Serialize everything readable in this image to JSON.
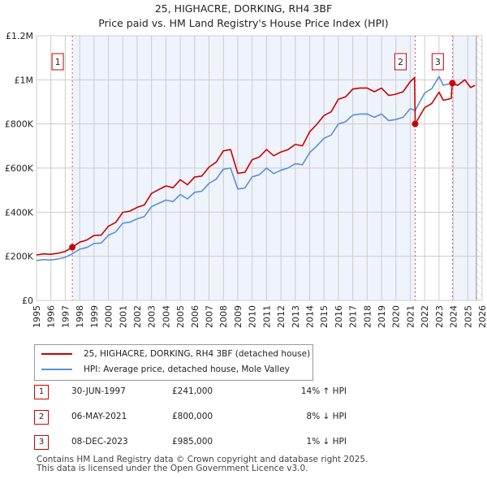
{
  "chart_data": {
    "type": "line",
    "title": "25, HIGHACRE, DORKING, RH4 3BF",
    "subtitle": "Price paid vs. HM Land Registry's House Price Index (HPI)",
    "xlim": [
      1995,
      2026
    ],
    "ylim": [
      0,
      1200000
    ],
    "x_ticks": [
      "1995",
      "1996",
      "1997",
      "1998",
      "1999",
      "2000",
      "2001",
      "2002",
      "2003",
      "2004",
      "2005",
      "2006",
      "2007",
      "2008",
      "2009",
      "2010",
      "2011",
      "2012",
      "2013",
      "2014",
      "2015",
      "2016",
      "2017",
      "2018",
      "2019",
      "2020",
      "2021",
      "2022",
      "2023",
      "2024",
      "2025",
      "2026"
    ],
    "y_ticks": [
      {
        "v": 0,
        "label": "£0"
      },
      {
        "v": 200000,
        "label": "£200K"
      },
      {
        "v": 400000,
        "label": "£400K"
      },
      {
        "v": 600000,
        "label": "£600K"
      },
      {
        "v": 800000,
        "label": "£800K"
      },
      {
        "v": 1000000,
        "label": "£1M"
      },
      {
        "v": 1200000,
        "label": "£1.2M"
      }
    ],
    "grid": true,
    "colors": {
      "property": "#cc0000",
      "hpi": "#5b8fd6",
      "shade": "#eef3fc"
    },
    "series": [
      {
        "name": "25, HIGHACRE, DORKING, RH4 3BF (detached house)",
        "color": "#cc0000",
        "x": [
          1995,
          1995.5,
          1996,
          1996.5,
          1997,
          1997.5,
          1998,
          1998.5,
          1999,
          1999.5,
          2000,
          2000.5,
          2001,
          2001.5,
          2002,
          2002.5,
          2003,
          2003.5,
          2004,
          2004.5,
          2005,
          2005.5,
          2006,
          2006.5,
          2007,
          2007.5,
          2008,
          2008.5,
          2009,
          2009.5,
          2010,
          2010.5,
          2011,
          2011.5,
          2012,
          2012.5,
          2013,
          2013.5,
          2014,
          2014.5,
          2015,
          2015.5,
          2016,
          2016.5,
          2017,
          2017.5,
          2018,
          2018.5,
          2019,
          2019.5,
          2020,
          2020.5,
          2021,
          2021.3,
          2021.35,
          2021.5,
          2022,
          2022.5,
          2023,
          2023.3,
          2023.85,
          2023.92,
          2024.3,
          2024.8,
          2025.2,
          2025.5
        ],
        "y": [
          206,
          211,
          209,
          214,
          222,
          241,
          264,
          274,
          294,
          296,
          336,
          353,
          399,
          405,
          422,
          433,
          485,
          502,
          519,
          511,
          547,
          524,
          559,
          564,
          604,
          627,
          678,
          684,
          576,
          581,
          638,
          650,
          684,
          656,
          673,
          684,
          707,
          701,
          764,
          798,
          838,
          855,
          912,
          923,
          958,
          963,
          963,
          946,
          963,
          929,
          935,
          946,
          992,
          1010,
          800,
          818,
          874,
          893,
          944,
          907,
          916,
          985,
          975,
          1000,
          965,
          975
        ]
      },
      {
        "name": "HPI: Average price, detached house, Mole Valley",
        "color": "#5b8fd6",
        "x": [
          1995,
          1995.5,
          1996,
          1996.5,
          1997,
          1997.5,
          1998,
          1998.5,
          1999,
          1999.5,
          2000,
          2000.5,
          2001,
          2001.5,
          2002,
          2002.5,
          2003,
          2003.5,
          2004,
          2004.5,
          2005,
          2005.5,
          2006,
          2006.5,
          2007,
          2007.5,
          2008,
          2008.5,
          2009,
          2009.5,
          2010,
          2010.5,
          2011,
          2011.5,
          2012,
          2012.5,
          2013,
          2013.5,
          2014,
          2014.5,
          2015,
          2015.5,
          2016,
          2016.5,
          2017,
          2017.5,
          2018,
          2018.5,
          2019,
          2019.5,
          2020,
          2020.5,
          2021,
          2021.35,
          2021.5,
          2022,
          2022.5,
          2023,
          2023.3,
          2023.9,
          2024.3,
          2024.8,
          2025.2,
          2025.5
        ],
        "y": [
          181,
          185,
          183,
          188,
          195,
          212,
          232,
          240,
          258,
          260,
          295,
          310,
          350,
          355,
          370,
          380,
          425,
          440,
          455,
          448,
          480,
          460,
          490,
          495,
          530,
          550,
          595,
          600,
          505,
          510,
          560,
          570,
          600,
          575,
          590,
          600,
          620,
          615,
          670,
          700,
          735,
          750,
          800,
          810,
          840,
          845,
          845,
          830,
          845,
          815,
          820,
          830,
          870,
          860,
          880,
          940,
          960,
          1015,
          975,
          985,
          975,
          1000,
          965,
          975
        ]
      }
    ],
    "y_unit": "thousands GBP",
    "sales": [
      {
        "n": "1",
        "x": 1997.49,
        "y": 241
      },
      {
        "n": "2",
        "x": 2021.34,
        "y": 800
      },
      {
        "n": "3",
        "x": 2023.93,
        "y": 985
      }
    ],
    "forecast_from": 2025.6
  },
  "legend": {
    "items": [
      "25, HIGHACRE, DORKING, RH4 3BF (detached house)",
      "HPI: Average price, detached house, Mole Valley"
    ]
  },
  "transactions": [
    {
      "n": "1",
      "date": "30-JUN-1997",
      "price": "£241,000",
      "hpi": "14% ↑ HPI"
    },
    {
      "n": "2",
      "date": "06-MAY-2021",
      "price": "£800,000",
      "hpi": "8% ↓ HPI"
    },
    {
      "n": "3",
      "date": "08-DEC-2023",
      "price": "£985,000",
      "hpi": "1% ↓ HPI"
    }
  ],
  "footer": {
    "line1": "Contains HM Land Registry data © Crown copyright and database right 2025.",
    "line2": "This data is licensed under the Open Government Licence v3.0."
  }
}
